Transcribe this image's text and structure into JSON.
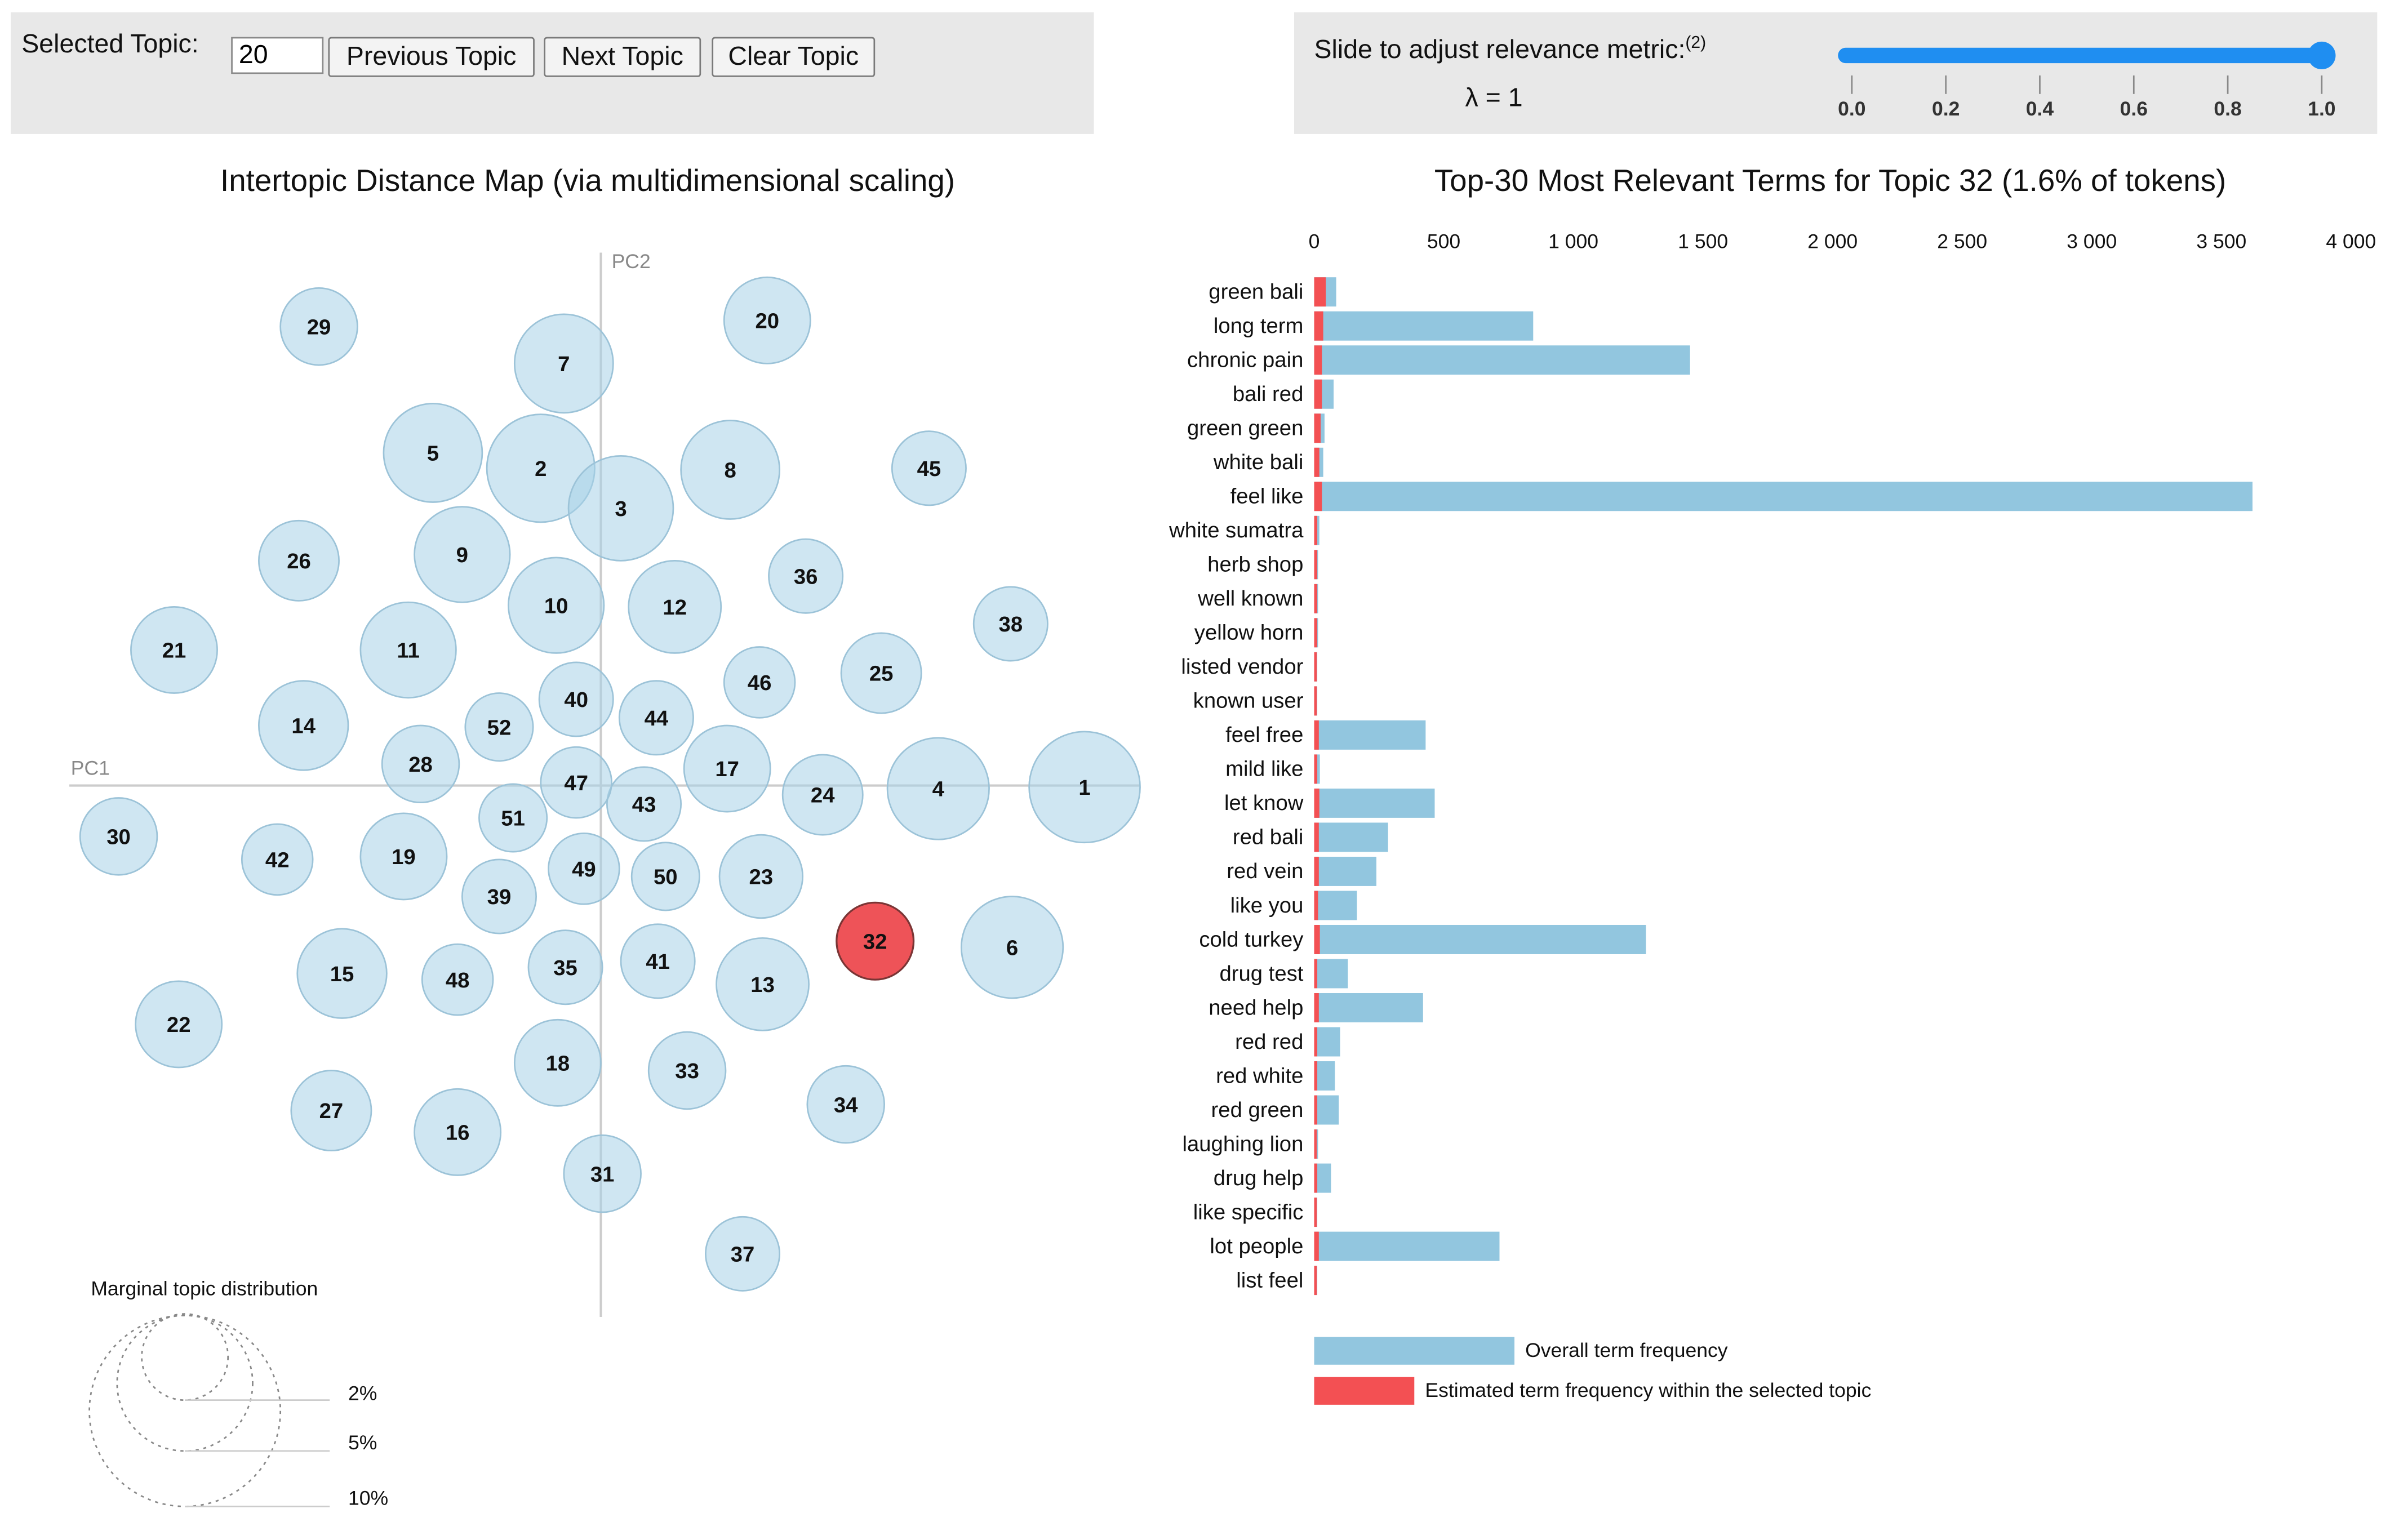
{
  "controls": {
    "selected_topic_label": "Selected Topic:",
    "selected_topic_value": "20",
    "previous_label": "Previous Topic",
    "next_label": "Next Topic",
    "clear_label": "Clear Topic",
    "slider_label": "Slide to adjust relevance metric:",
    "slider_footnote": "(2)",
    "lambda_text": "λ = 1",
    "lambda_value": 1,
    "slider_ticks": [
      "0.0",
      "0.2",
      "0.4",
      "0.6",
      "0.8",
      "1.0"
    ]
  },
  "map": {
    "title": "Intertopic Distance Map (via multidimensional scaling)",
    "pc1_label": "PC1",
    "pc2_label": "PC2",
    "selected_topic": "32",
    "legend_title": "Marginal topic distribution",
    "legend_levels": [
      "2%",
      "5%",
      "10%"
    ],
    "topics": [
      "1",
      "2",
      "3",
      "4",
      "5",
      "6",
      "7",
      "8",
      "9",
      "10",
      "11",
      "12",
      "13",
      "14",
      "15",
      "16",
      "17",
      "18",
      "19",
      "20",
      "21",
      "22",
      "23",
      "24",
      "25",
      "26",
      "27",
      "28",
      "29",
      "30",
      "31",
      "33",
      "34",
      "35",
      "36",
      "37",
      "38",
      "39",
      "40",
      "41",
      "42",
      "43",
      "44",
      "45",
      "46",
      "47",
      "48",
      "49",
      "50",
      "51",
      "52",
      "32"
    ]
  },
  "chart_data": {
    "type": "bar",
    "title": "Top-30 Most Relevant Terms for Topic 32 (1.6% of tokens)",
    "xlim": [
      0,
      4000
    ],
    "x_ticks": [
      "0",
      "500",
      "1 000",
      "1 500",
      "2 000",
      "2 500",
      "3 000",
      "3 500",
      "4 000"
    ],
    "tick_values": [
      0,
      500,
      1000,
      1500,
      2000,
      2500,
      3000,
      3500,
      4000
    ],
    "categories": [
      "green bali",
      "long term",
      "chronic pain",
      "bali red",
      "green green",
      "white bali",
      "feel like",
      "white sumatra",
      "herb shop",
      "well known",
      "yellow horn",
      "listed vendor",
      "known user",
      "feel free",
      "mild like",
      "let know",
      "red bali",
      "red vein",
      "like you",
      "cold turkey",
      "drug test",
      "need help",
      "red red",
      "red white",
      "red green",
      "laughing lion",
      "drug help",
      "like specific",
      "lot people",
      "list feel"
    ],
    "series": [
      {
        "name": "Overall term frequency",
        "color": "#92c6df",
        "values": [
          85,
          845,
          1450,
          75,
          40,
          35,
          3620,
          20,
          15,
          15,
          15,
          12,
          12,
          430,
          22,
          465,
          285,
          240,
          165,
          1280,
          130,
          420,
          100,
          80,
          95,
          15,
          65,
          12,
          715,
          12
        ]
      },
      {
        "name": "Estimated term frequency within the selected topic",
        "color": "#f35053",
        "values": [
          45,
          35,
          30,
          30,
          25,
          20,
          30,
          12,
          12,
          12,
          12,
          10,
          10,
          18,
          12,
          20,
          18,
          18,
          15,
          22,
          12,
          18,
          12,
          12,
          12,
          10,
          12,
          10,
          18,
          10
        ]
      }
    ],
    "legend": [
      "Overall term frequency",
      "Estimated term frequency within the selected topic"
    ]
  }
}
